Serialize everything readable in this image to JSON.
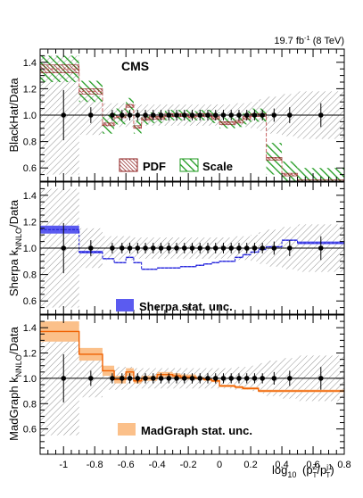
{
  "header": {
    "lumi": "19.7 fb",
    "lumi_sup": "-1",
    "energy": " (8 TeV)"
  },
  "cms_label": "CMS",
  "colors": {
    "pdf": "#8b1a1a",
    "scale": "#1e9a1e",
    "sherpa": "#5b5bf0",
    "sherpa_line": "#1a1ad0",
    "madgraph": "#fbc08a",
    "madgraph_line": "#f06000",
    "data_unc": "#7a7a7a"
  },
  "legend": {
    "pdf": "PDF",
    "scale": "Scale",
    "sherpa": "Sherpa stat. unc.",
    "madgraph": "MadGraph stat. unc."
  },
  "chart_data": [
    {
      "type": "step",
      "panel": "blackhat",
      "ylabel": "BlackHat/Data",
      "ylim": [
        0.5,
        1.5
      ],
      "yticks": [
        0.6,
        0.8,
        1.0,
        1.2,
        1.4
      ],
      "bin_edges": [
        -1.15,
        -0.9,
        -0.75,
        -0.675,
        -0.6,
        -0.55,
        -0.5,
        -0.45,
        -0.4,
        -0.35,
        -0.3,
        -0.25,
        -0.2,
        -0.15,
        -0.1,
        -0.05,
        0.0,
        0.05,
        0.1,
        0.15,
        0.2,
        0.25,
        0.3,
        0.4,
        0.5,
        0.8
      ],
      "ratio": [
        1.35,
        1.18,
        0.93,
        0.99,
        1.07,
        0.91,
        0.97,
        0.98,
        0.98,
        1.0,
        1.0,
        1.0,
        0.99,
        1.0,
        1.0,
        0.98,
        0.94,
        0.94,
        0.95,
        0.98,
        1.0,
        1.0,
        0.67,
        0.55,
        0.5
      ],
      "pdf_unc": [
        0.03,
        0.02,
        0.01,
        0.01,
        0.01,
        0.01,
        0.01,
        0.01,
        0.01,
        0.01,
        0.01,
        0.01,
        0.01,
        0.01,
        0.01,
        0.01,
        0.01,
        0.01,
        0.01,
        0.01,
        0.01,
        0.01,
        0.01,
        0.01,
        0.01
      ],
      "scale_unc": [
        0.1,
        0.08,
        0.07,
        0.06,
        0.06,
        0.05,
        0.04,
        0.04,
        0.04,
        0.04,
        0.04,
        0.04,
        0.04,
        0.04,
        0.04,
        0.04,
        0.04,
        0.04,
        0.04,
        0.05,
        0.05,
        0.05,
        0.12,
        0.1,
        0.1
      ]
    },
    {
      "type": "step",
      "panel": "sherpa",
      "ylabel": "Sherpa k",
      "ylabel_sub": "NNLO",
      "ylabel_tail": "/Data",
      "ylim": [
        0.5,
        1.5
      ],
      "yticks": [
        0.6,
        0.8,
        1.0,
        1.2,
        1.4
      ],
      "bin_edges": [
        -1.15,
        -0.9,
        -0.75,
        -0.675,
        -0.6,
        -0.55,
        -0.5,
        -0.45,
        -0.4,
        -0.35,
        -0.3,
        -0.25,
        -0.2,
        -0.15,
        -0.1,
        -0.05,
        0.0,
        0.05,
        0.1,
        0.15,
        0.2,
        0.25,
        0.3,
        0.4,
        0.5,
        0.8
      ],
      "ratio": [
        1.14,
        0.97,
        0.92,
        0.89,
        0.93,
        0.89,
        0.84,
        0.84,
        0.85,
        0.85,
        0.85,
        0.86,
        0.86,
        0.87,
        0.88,
        0.89,
        0.9,
        0.9,
        0.93,
        0.95,
        0.97,
        0.99,
        1.01,
        1.06,
        1.04
      ],
      "stat_unc": [
        0.03,
        0.01,
        0.005,
        0.005,
        0.005,
        0.005,
        0.005,
        0.005,
        0.005,
        0.005,
        0.005,
        0.005,
        0.005,
        0.005,
        0.005,
        0.005,
        0.005,
        0.005,
        0.005,
        0.005,
        0.005,
        0.005,
        0.005,
        0.005,
        0.01
      ]
    },
    {
      "type": "step",
      "panel": "madgraph",
      "ylabel": "MadGraph k",
      "ylabel_sub": "NNLO",
      "ylabel_tail": "/Data",
      "xlabel": "log",
      "xlabel_sub": "10",
      "ylim": [
        0.4,
        1.5
      ],
      "yticks": [
        0.6,
        0.8,
        1.0,
        1.2,
        1.4
      ],
      "xlim": [
        -1.15,
        0.8
      ],
      "xticks": [
        -1.0,
        -0.8,
        -0.6,
        -0.4,
        -0.2,
        0.0,
        0.2,
        0.4,
        0.6,
        0.8
      ],
      "xticklabels": [
        "-1",
        "-0.8",
        "-0.6",
        "-0.4",
        "-0.2",
        "0",
        "0.2",
        "0.4",
        "0.6",
        "0.8"
      ],
      "bin_edges": [
        -1.15,
        -0.9,
        -0.75,
        -0.675,
        -0.6,
        -0.55,
        -0.5,
        -0.45,
        -0.4,
        -0.35,
        -0.3,
        -0.25,
        -0.2,
        -0.15,
        -0.1,
        -0.05,
        0.0,
        0.05,
        0.1,
        0.15,
        0.2,
        0.25,
        0.3,
        0.4,
        0.5,
        0.8
      ],
      "ratio": [
        1.37,
        1.19,
        1.06,
        0.99,
        1.05,
        0.98,
        1.0,
        1.0,
        1.03,
        1.03,
        1.02,
        1.01,
        1.01,
        1.0,
        0.99,
        0.98,
        0.94,
        0.94,
        0.93,
        0.92,
        0.92,
        0.9,
        0.9,
        0.9,
        0.9
      ],
      "stat_unc": [
        0.08,
        0.05,
        0.04,
        0.03,
        0.03,
        0.02,
        0.02,
        0.02,
        0.02,
        0.02,
        0.02,
        0.02,
        0.02,
        0.01,
        0.01,
        0.01,
        0.01,
        0.01,
        0.01,
        0.01,
        0.01,
        0.01,
        0.01,
        0.01,
        0.01
      ]
    }
  ],
  "data_points": {
    "x": [
      -1.0,
      -0.825,
      -0.6875,
      -0.625,
      -0.575,
      -0.525,
      -0.475,
      -0.425,
      -0.375,
      -0.325,
      -0.275,
      -0.225,
      -0.175,
      -0.125,
      -0.075,
      -0.025,
      0.025,
      0.075,
      0.125,
      0.175,
      0.225,
      0.275,
      0.35,
      0.45,
      0.65
    ],
    "y": [
      1,
      1,
      1,
      1,
      1,
      1,
      1,
      1,
      1,
      1,
      1,
      1,
      1,
      1,
      1,
      1,
      1,
      1,
      1,
      1,
      1,
      1,
      1,
      1,
      1
    ],
    "err": [
      0.19,
      0.06,
      0.04,
      0.04,
      0.04,
      0.04,
      0.04,
      0.04,
      0.04,
      0.04,
      0.04,
      0.04,
      0.04,
      0.04,
      0.04,
      0.04,
      0.04,
      0.04,
      0.04,
      0.04,
      0.04,
      0.04,
      0.05,
      0.06,
      0.09
    ],
    "band": [
      0.45,
      0.15,
      0.09,
      0.09,
      0.09,
      0.08,
      0.08,
      0.08,
      0.08,
      0.08,
      0.08,
      0.08,
      0.08,
      0.08,
      0.08,
      0.08,
      0.08,
      0.08,
      0.09,
      0.09,
      0.1,
      0.12,
      0.14,
      0.16,
      0.18
    ]
  }
}
